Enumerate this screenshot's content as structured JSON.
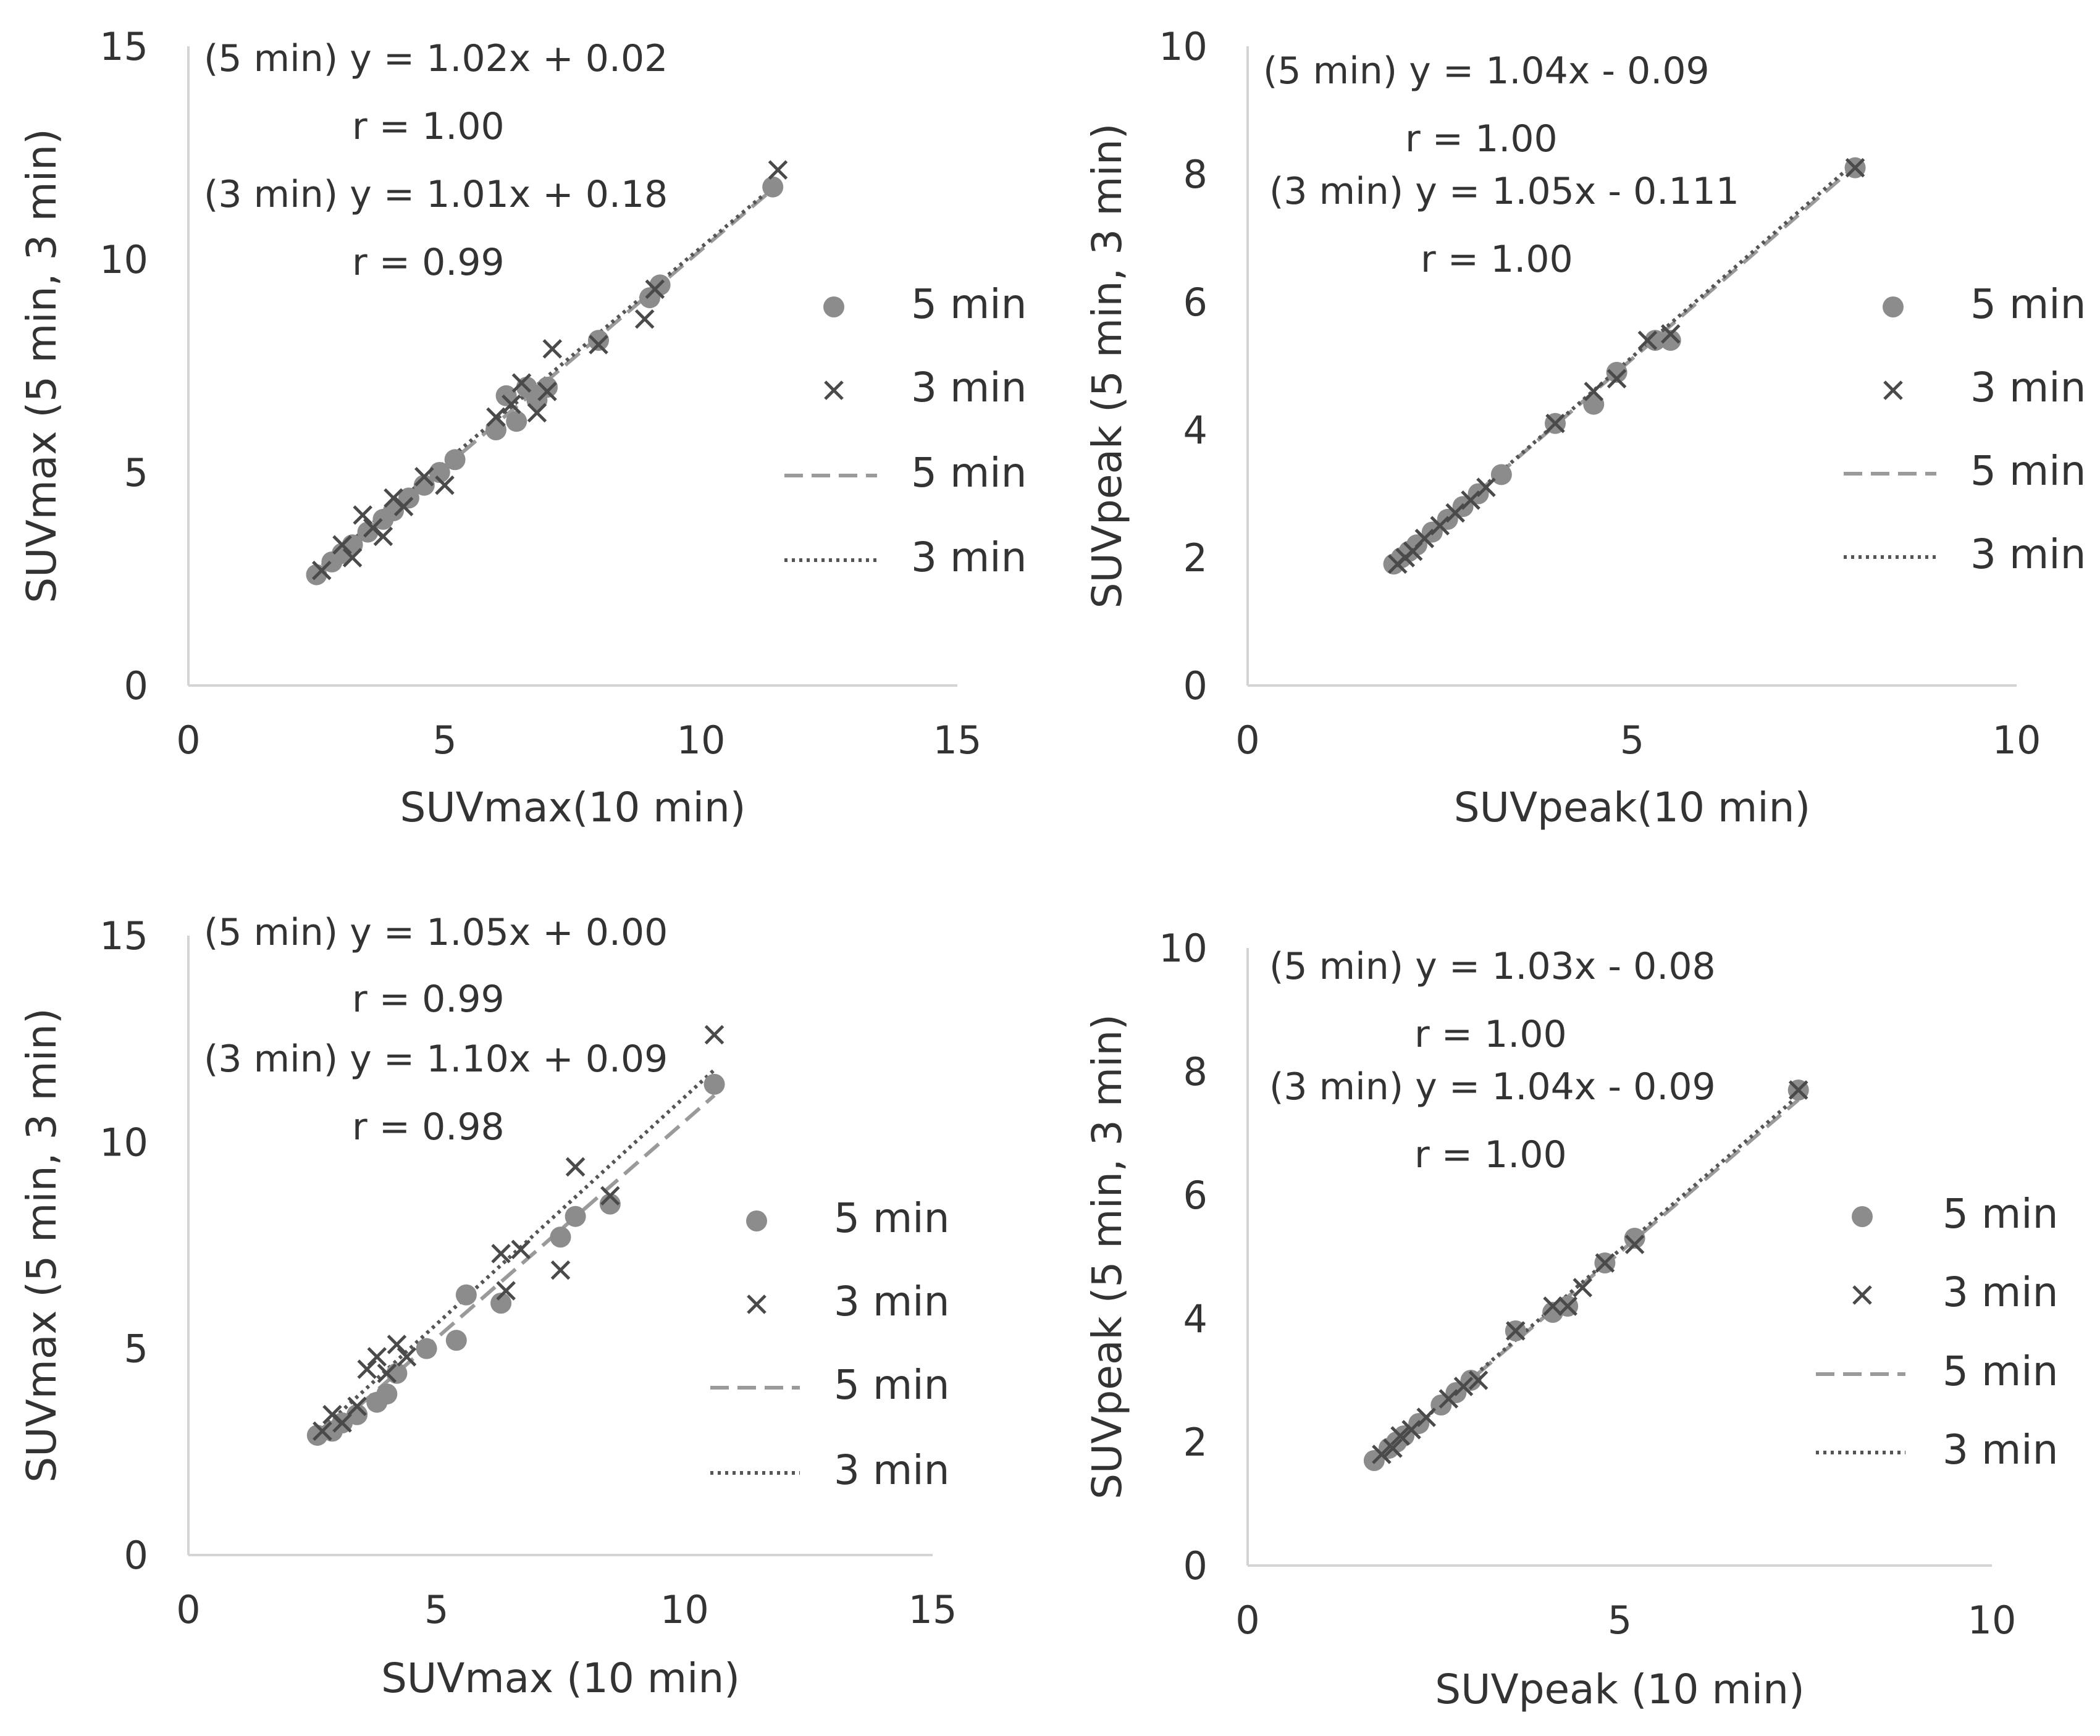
{
  "chart_data": [
    {
      "type": "scatter",
      "panel": "top-left",
      "xlabel": "SUVmax(10 min)",
      "ylabel": "SUVmax (5 min, 3 min)",
      "xlim": [
        0,
        15
      ],
      "ylim": [
        0,
        15
      ],
      "xticks": [
        "0",
        "5",
        "10",
        "15"
      ],
      "yticks": [
        "0",
        "5",
        "10",
        "15"
      ],
      "annotations": [
        "(5 min) y = 1.02x + 0.02",
        "r = 1.00",
        "(3 min) y = 1.01x + 0.18",
        "r = 0.99"
      ],
      "legend": {
        "position": "right",
        "entries": [
          "5 min",
          "3 min",
          "5 min",
          "3 min"
        ]
      },
      "series": [
        {
          "name": "5 min",
          "marker": "circle",
          "x": [
            2.5,
            2.8,
            3.0,
            3.2,
            3.5,
            3.8,
            4.0,
            4.3,
            4.6,
            4.9,
            5.2,
            6.0,
            6.2,
            6.4,
            6.6,
            6.8,
            7.0,
            8.0,
            9.0,
            9.2,
            11.4
          ],
          "y": [
            2.6,
            2.9,
            3.1,
            3.3,
            3.6,
            3.9,
            4.1,
            4.4,
            4.7,
            5.0,
            5.3,
            6.0,
            6.8,
            6.2,
            7.0,
            6.7,
            7.0,
            8.1,
            9.1,
            9.4,
            11.7
          ]
        },
        {
          "name": "3 min",
          "marker": "cross",
          "x": [
            2.6,
            3.0,
            3.2,
            3.4,
            3.6,
            3.8,
            4.0,
            4.2,
            4.6,
            5.0,
            6.0,
            6.3,
            6.5,
            6.8,
            7.0,
            7.1,
            8.0,
            8.9,
            9.1,
            11.5
          ],
          "y": [
            2.7,
            3.3,
            3.0,
            4.0,
            3.7,
            3.5,
            4.4,
            4.2,
            4.9,
            4.7,
            6.3,
            6.6,
            7.1,
            6.4,
            6.9,
            7.9,
            8.0,
            8.6,
            9.3,
            12.1
          ]
        }
      ],
      "fit_lines": [
        {
          "name": "5 min",
          "style": "dashed",
          "slope": 1.02,
          "intercept": 0.02,
          "x_range": [
            2.5,
            11.5
          ]
        },
        {
          "name": "3 min",
          "style": "dotted",
          "slope": 1.01,
          "intercept": 0.18,
          "x_range": [
            2.5,
            11.5
          ]
        }
      ]
    },
    {
      "type": "scatter",
      "panel": "top-right",
      "xlabel": "SUVpeak(10 min)",
      "ylabel": "SUVpeak (5 min, 3 min)",
      "xlim": [
        0,
        10
      ],
      "ylim": [
        0,
        10
      ],
      "xticks": [
        "0",
        "5",
        "10"
      ],
      "yticks": [
        "0",
        "2",
        "4",
        "6",
        "8",
        "10"
      ],
      "annotations": [
        "(5 min) y = 1.04x - 0.09",
        "r = 1.00",
        "(3 min) y = 1.05x - 0.111",
        "r = 1.00"
      ],
      "legend": {
        "position": "right",
        "entries": [
          "5 min",
          "3 min",
          "5 min",
          "3 min"
        ]
      },
      "series": [
        {
          "name": "5 min",
          "marker": "circle",
          "x": [
            1.9,
            2.0,
            2.1,
            2.2,
            2.4,
            2.6,
            2.8,
            3.0,
            3.3,
            4.0,
            4.5,
            4.8,
            5.3,
            5.5,
            7.9
          ],
          "y": [
            1.9,
            2.0,
            2.1,
            2.2,
            2.4,
            2.6,
            2.8,
            3.0,
            3.3,
            4.1,
            4.4,
            4.9,
            5.4,
            5.4,
            8.1
          ]
        },
        {
          "name": "3 min",
          "marker": "cross",
          "x": [
            1.95,
            2.05,
            2.15,
            2.3,
            2.5,
            2.7,
            2.9,
            3.1,
            4.0,
            4.5,
            4.8,
            5.2,
            5.5,
            7.9
          ],
          "y": [
            1.9,
            2.0,
            2.1,
            2.3,
            2.5,
            2.7,
            2.9,
            3.1,
            4.1,
            4.6,
            4.8,
            5.4,
            5.5,
            8.1
          ]
        }
      ],
      "fit_lines": [
        {
          "name": "5 min",
          "style": "dashed",
          "slope": 1.04,
          "intercept": -0.09,
          "x_range": [
            1.9,
            7.9
          ]
        },
        {
          "name": "3 min",
          "style": "dotted",
          "slope": 1.05,
          "intercept": -0.111,
          "x_range": [
            1.9,
            7.9
          ]
        }
      ]
    },
    {
      "type": "scatter",
      "panel": "bottom-left",
      "xlabel": "SUVmax (10 min)",
      "ylabel": "SUVmax (5 min, 3 min)",
      "xlim": [
        0,
        15
      ],
      "ylim": [
        0,
        15
      ],
      "xticks": [
        "0",
        "5",
        "10",
        "15"
      ],
      "yticks": [
        "0",
        "5",
        "10",
        "15"
      ],
      "annotations": [
        "(5 min) y = 1.05x + 0.00",
        "r = 0.99",
        "(3 min) y = 1.10x + 0.09",
        "r = 0.98"
      ],
      "legend": {
        "position": "right",
        "entries": [
          "5 min",
          "3 min",
          "5 min",
          "3 min"
        ]
      },
      "series": [
        {
          "name": "5 min",
          "marker": "circle",
          "x": [
            2.6,
            2.9,
            3.1,
            3.4,
            3.8,
            4.0,
            4.2,
            4.8,
            5.4,
            5.6,
            6.3,
            7.5,
            7.8,
            8.5,
            10.6
          ],
          "y": [
            2.9,
            3.0,
            3.2,
            3.4,
            3.7,
            3.9,
            4.4,
            5.0,
            5.2,
            6.3,
            6.1,
            7.7,
            8.2,
            8.5,
            11.4
          ]
        },
        {
          "name": "3 min",
          "marker": "cross",
          "x": [
            2.7,
            2.9,
            3.1,
            3.4,
            3.6,
            3.8,
            4.0,
            4.2,
            4.4,
            6.3,
            6.4,
            6.7,
            7.5,
            7.8,
            8.5,
            10.6
          ],
          "y": [
            3.0,
            3.4,
            3.2,
            3.6,
            4.5,
            4.8,
            4.4,
            5.1,
            4.8,
            7.3,
            6.4,
            7.4,
            6.9,
            9.4,
            8.7,
            12.6
          ]
        }
      ],
      "fit_lines": [
        {
          "name": "5 min",
          "style": "dashed",
          "slope": 1.05,
          "intercept": 0.0,
          "x_range": [
            2.6,
            10.6
          ]
        },
        {
          "name": "3 min",
          "style": "dotted",
          "slope": 1.1,
          "intercept": 0.09,
          "x_range": [
            2.6,
            10.6
          ]
        }
      ]
    },
    {
      "type": "scatter",
      "panel": "bottom-right",
      "xlabel": "SUVpeak (10 min)",
      "ylabel": "SUVpeak (5 min, 3 min)",
      "xlim": [
        0,
        10
      ],
      "ylim": [
        0,
        10
      ],
      "xticks": [
        "0",
        "5",
        "10"
      ],
      "yticks": [
        "0",
        "2",
        "4",
        "6",
        "8",
        "10"
      ],
      "annotations": [
        "(5 min) y = 1.03x - 0.08",
        "r = 1.00",
        "(3 min) y = 1.04x - 0.09",
        "r = 1.00"
      ],
      "legend": {
        "position": "right",
        "entries": [
          "5 min",
          "3 min",
          "5 min",
          "3 min"
        ]
      },
      "series": [
        {
          "name": "5 min",
          "marker": "circle",
          "x": [
            1.7,
            1.9,
            2.0,
            2.1,
            2.3,
            2.6,
            2.8,
            3.0,
            3.6,
            4.1,
            4.3,
            4.8,
            5.2,
            7.4
          ],
          "y": [
            1.7,
            1.9,
            2.0,
            2.1,
            2.3,
            2.6,
            2.8,
            3.0,
            3.8,
            4.1,
            4.2,
            4.9,
            5.3,
            7.7
          ]
        },
        {
          "name": "3 min",
          "marker": "cross",
          "x": [
            1.8,
            1.95,
            2.05,
            2.2,
            2.4,
            2.7,
            2.9,
            3.1,
            3.6,
            4.1,
            4.3,
            4.5,
            4.8,
            5.2,
            7.4
          ],
          "y": [
            1.8,
            1.9,
            2.1,
            2.2,
            2.4,
            2.7,
            2.9,
            3.0,
            3.8,
            4.2,
            4.2,
            4.5,
            4.9,
            5.2,
            7.7
          ]
        }
      ],
      "fit_lines": [
        {
          "name": "5 min",
          "style": "dashed",
          "slope": 1.03,
          "intercept": -0.08,
          "x_range": [
            1.7,
            7.4
          ]
        },
        {
          "name": "3 min",
          "style": "dotted",
          "slope": 1.04,
          "intercept": -0.09,
          "x_range": [
            1.7,
            7.4
          ]
        }
      ]
    }
  ]
}
